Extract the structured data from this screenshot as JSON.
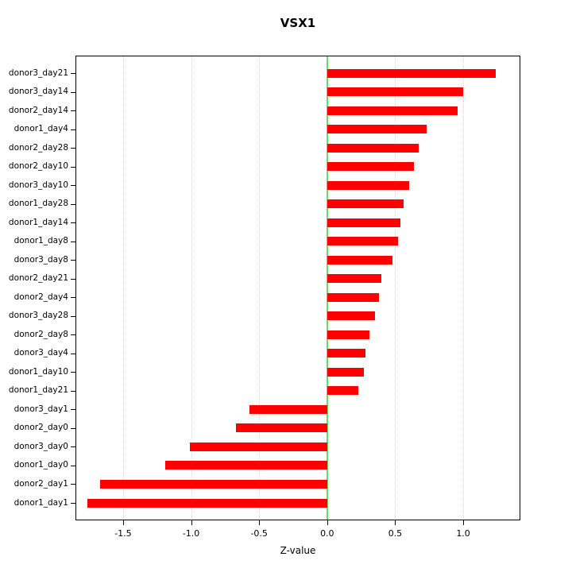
{
  "title": "VSX1",
  "chart_data": {
    "type": "bar",
    "orientation": "horizontal",
    "title": "VSX1",
    "xlabel": "Z-value",
    "ylabel": "",
    "categories": [
      "donor3_day21",
      "donor3_day14",
      "donor2_day14",
      "donor1_day4",
      "donor2_day28",
      "donor2_day10",
      "donor3_day10",
      "donor1_day28",
      "donor1_day14",
      "donor1_day8",
      "donor3_day8",
      "donor2_day21",
      "donor2_day4",
      "donor3_day28",
      "donor2_day8",
      "donor3_day4",
      "donor1_day10",
      "donor1_day21",
      "donor3_day1",
      "donor2_day0",
      "donor3_day0",
      "donor1_day0",
      "donor2_day1",
      "donor1_day1"
    ],
    "values": [
      1.24,
      1.0,
      0.96,
      0.73,
      0.67,
      0.64,
      0.6,
      0.56,
      0.54,
      0.52,
      0.48,
      0.4,
      0.38,
      0.35,
      0.31,
      0.28,
      0.27,
      0.23,
      -0.57,
      -0.67,
      -1.01,
      -1.19,
      -1.67,
      -1.76
    ],
    "xlim": [
      -1.85,
      1.42
    ],
    "xticks": [
      "-1.5",
      "-1.0",
      "-0.5",
      "0.0",
      "0.5",
      "1.0"
    ],
    "grid": true,
    "legend_position": "none",
    "bar_color": "#ff0000",
    "zero_line_color": "#63dd63",
    "grid_color": "#d9d9d9"
  }
}
